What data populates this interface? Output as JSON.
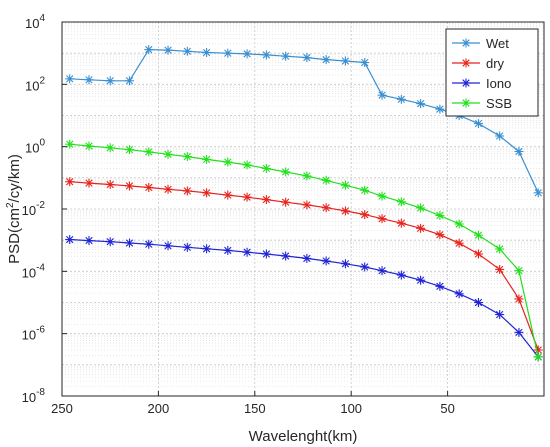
{
  "chart_data": {
    "type": "line",
    "title": "",
    "xlabel": "Wavelenght(km)",
    "ylabel_base": "PSD(cm",
    "ylabel_sup": "2",
    "ylabel_rest": "/cy/km)",
    "y_scale": "log",
    "x_reversed": true,
    "xlim": [
      250,
      0
    ],
    "ylim": [
      1e-08,
      10000
    ],
    "grid": true,
    "minor_grid": true,
    "legend_position": "top-right",
    "x_ticks": [
      250,
      200,
      150,
      100,
      50
    ],
    "y_ticks": [
      {
        "value": 1e-08,
        "base": "10",
        "exp": "-8"
      },
      {
        "value": 1e-06,
        "base": "10",
        "exp": "-6"
      },
      {
        "value": 0.0001,
        "base": "10",
        "exp": "-4"
      },
      {
        "value": 0.01,
        "base": "10",
        "exp": "-2"
      },
      {
        "value": 1,
        "base": "10",
        "exp": "0"
      },
      {
        "value": 100,
        "base": "10",
        "exp": "2"
      },
      {
        "value": 10000,
        "base": "10",
        "exp": "4"
      }
    ],
    "series": [
      {
        "name": "Wet",
        "color": "#3a8fd0",
        "x": [
          246,
          236,
          225,
          215,
          205,
          195,
          185,
          175,
          164,
          154,
          144,
          134,
          123,
          113,
          103,
          93,
          84,
          74,
          64,
          54,
          44,
          34,
          23,
          13,
          3
        ],
        "y": [
          150,
          140,
          130,
          130,
          1300,
          1250,
          1150,
          1050,
          1000,
          950,
          880,
          800,
          720,
          620,
          560,
          500,
          45,
          33,
          24,
          16,
          10,
          5.5,
          2.2,
          0.7,
          0.033
        ]
      },
      {
        "name": "dry",
        "color": "#e8231c",
        "x": [
          246,
          236,
          225,
          215,
          205,
          195,
          185,
          175,
          164,
          154,
          144,
          134,
          123,
          113,
          103,
          93,
          84,
          74,
          64,
          54,
          44,
          34,
          23,
          13,
          3
        ],
        "y": [
          0.075,
          0.068,
          0.061,
          0.055,
          0.049,
          0.043,
          0.038,
          0.033,
          0.028,
          0.024,
          0.02,
          0.0165,
          0.0135,
          0.011,
          0.0087,
          0.0066,
          0.0049,
          0.0035,
          0.0024,
          0.0015,
          0.0008,
          0.00036,
          0.000115,
          1.3e-05,
          3e-07
        ]
      },
      {
        "name": "Iono",
        "color": "#1f24d6",
        "x": [
          246,
          236,
          225,
          215,
          205,
          195,
          185,
          175,
          164,
          154,
          144,
          134,
          123,
          113,
          103,
          93,
          84,
          74,
          64,
          54,
          44,
          34,
          23,
          13,
          3
        ],
        "y": [
          0.00105,
          0.00097,
          0.00089,
          0.00081,
          0.00074,
          0.00066,
          0.00059,
          0.00053,
          0.00047,
          0.00041,
          0.00036,
          0.00031,
          0.00026,
          0.000215,
          0.000175,
          0.000138,
          0.000105,
          7.6e-05,
          5.2e-05,
          3.3e-05,
          1.9e-05,
          1e-05,
          4.1e-06,
          1.1e-06,
          1.8e-07
        ]
      },
      {
        "name": "SSB",
        "color": "#22e01c",
        "x": [
          246,
          236,
          225,
          215,
          205,
          195,
          185,
          175,
          164,
          154,
          144,
          134,
          123,
          113,
          103,
          93,
          84,
          74,
          64,
          54,
          44,
          34,
          23,
          13,
          3
        ],
        "y": [
          1.2,
          1.05,
          0.92,
          0.8,
          0.68,
          0.57,
          0.48,
          0.39,
          0.32,
          0.26,
          0.2,
          0.155,
          0.115,
          0.083,
          0.058,
          0.04,
          0.026,
          0.017,
          0.0108,
          0.0062,
          0.0033,
          0.00145,
          0.00052,
          0.000105,
          1.8e-07
        ]
      }
    ]
  }
}
